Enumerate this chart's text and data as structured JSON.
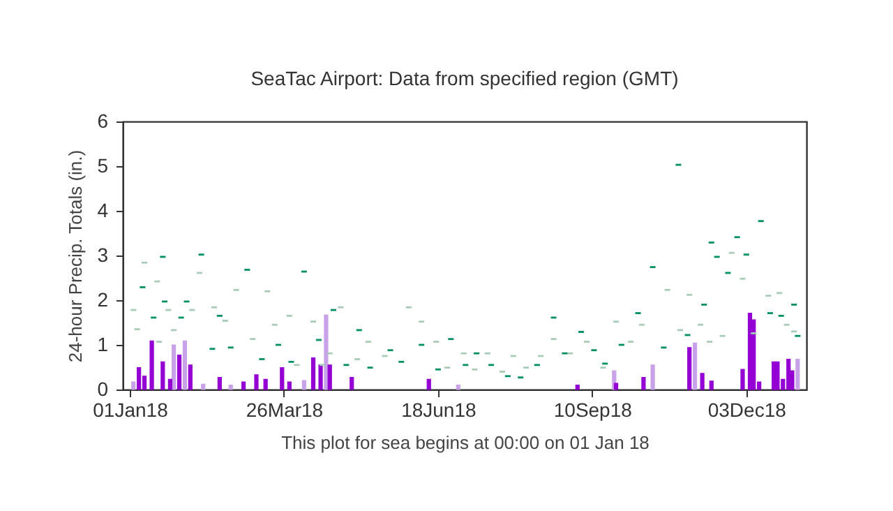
{
  "chart_data": {
    "type": "bar",
    "title": "SeaTac Airport:  Data from specified region (GMT)",
    "xlabel": "This plot for sea begins at 00:00 on 01 Jan 18",
    "ylabel": "24-hour Precip. Totals (in.)",
    "xlim": [
      "2018-01-01",
      "2019-01-01"
    ],
    "xticks": [
      {
        "value": "2018-01-01",
        "label": "01Jan18"
      },
      {
        "value": "2018-03-26",
        "label": "26Mar18"
      },
      {
        "value": "2018-06-18",
        "label": "18Jun18"
      },
      {
        "value": "2018-09-10",
        "label": "10Sep18"
      },
      {
        "value": "2018-12-03",
        "label": "03Dec18"
      }
    ],
    "ylim": [
      0,
      6
    ],
    "yticks": [
      0,
      1,
      2,
      3,
      4,
      5,
      6
    ],
    "series": [
      {
        "color": "#c8a2e8",
        "x": [
          "2018-01-03",
          "2018-01-25",
          "2018-01-31",
          "2018-02-10",
          "2018-02-25",
          "2018-04-06",
          "2018-04-18",
          "2018-06-29",
          "2018-09-22",
          "2018-10-13",
          "2018-11-05",
          "2018-12-31"
        ],
        "values": [
          0.17,
          1.0,
          1.09,
          0.12,
          0.1,
          0.2,
          1.67,
          0.1,
          0.42,
          0.55,
          1.04,
          0.68
        ]
      },
      {
        "color": "#9400d3",
        "x": [
          "2018-01-06",
          "2018-01-09",
          "2018-01-13",
          "2018-01-19",
          "2018-01-23",
          "2018-01-28",
          "2018-02-03",
          "2018-02-19",
          "2018-03-04",
          "2018-03-11",
          "2018-03-16",
          "2018-03-25",
          "2018-03-29",
          "2018-04-11",
          "2018-04-15",
          "2018-04-20",
          "2018-05-02",
          "2018-06-13",
          "2018-09-02",
          "2018-09-23",
          "2018-10-08",
          "2018-11-02",
          "2018-11-09",
          "2018-11-14",
          "2018-12-01",
          "2018-12-05",
          "2018-12-07",
          "2018-12-10",
          "2018-12-18",
          "2018-12-20",
          "2018-12-23",
          "2018-12-26",
          "2018-12-28"
        ],
        "values": [
          0.49,
          0.3,
          1.09,
          0.62,
          0.23,
          0.77,
          0.55,
          0.27,
          0.17,
          0.33,
          0.23,
          0.49,
          0.17,
          0.71,
          0.55,
          0.55,
          0.27,
          0.23,
          0.1,
          0.14,
          0.27,
          0.94,
          0.36,
          0.19,
          0.45,
          1.71,
          1.56,
          0.17,
          0.62,
          0.62,
          0.23,
          0.68,
          0.42
        ]
      },
      {
        "type": "scatter",
        "color": "#a8ccb8",
        "x": [
          "2018-01-03",
          "2018-01-05",
          "2018-01-09",
          "2018-01-16",
          "2018-01-17",
          "2018-01-22",
          "2018-01-25",
          "2018-02-04",
          "2018-02-08",
          "2018-02-16",
          "2018-02-22",
          "2018-02-28",
          "2018-03-09",
          "2018-03-17",
          "2018-03-21",
          "2018-03-29",
          "2018-04-02",
          "2018-04-11",
          "2018-04-16",
          "2018-04-20",
          "2018-04-26",
          "2018-05-05",
          "2018-05-11",
          "2018-05-20",
          "2018-06-02",
          "2018-06-09",
          "2018-06-17",
          "2018-06-23",
          "2018-07-02",
          "2018-07-08",
          "2018-07-15",
          "2018-07-23",
          "2018-07-29",
          "2018-08-05",
          "2018-08-13",
          "2018-08-20",
          "2018-08-29",
          "2018-09-07",
          "2018-09-16",
          "2018-09-23",
          "2018-10-01",
          "2018-10-07",
          "2018-10-21",
          "2018-10-28",
          "2018-11-02",
          "2018-11-08",
          "2018-11-13",
          "2018-11-20",
          "2018-11-25",
          "2018-12-01",
          "2018-12-07",
          "2018-12-15",
          "2018-12-21",
          "2018-12-25",
          "2018-12-29"
        ],
        "values": [
          1.78,
          1.35,
          2.84,
          2.42,
          1.07,
          1.78,
          1.33,
          1.78,
          2.61,
          1.84,
          1.54,
          2.23,
          1.13,
          2.2,
          1.45,
          1.65,
          0.55,
          1.52,
          0.55,
          0.81,
          1.84,
          0.68,
          1.07,
          0.75,
          1.84,
          1.52,
          1.07,
          0.49,
          0.81,
          0.45,
          0.81,
          0.4,
          0.75,
          0.49,
          0.75,
          1.13,
          0.81,
          1.07,
          0.49,
          1.52,
          1.07,
          1.45,
          2.23,
          1.33,
          2.12,
          1.45,
          1.07,
          1.2,
          3.06,
          2.48,
          1.26,
          2.1,
          2.16,
          1.45,
          1.3
        ]
      },
      {
        "type": "scatter",
        "color": "#008f5f",
        "x": [
          "2018-01-08",
          "2018-01-14",
          "2018-01-19",
          "2018-01-20",
          "2018-01-29",
          "2018-02-01",
          "2018-02-09",
          "2018-02-15",
          "2018-02-19",
          "2018-02-25",
          "2018-03-06",
          "2018-03-14",
          "2018-03-23",
          "2018-03-30",
          "2018-04-06",
          "2018-04-14",
          "2018-04-22",
          "2018-04-29",
          "2018-05-06",
          "2018-05-12",
          "2018-05-23",
          "2018-05-29",
          "2018-06-09",
          "2018-06-18",
          "2018-06-25",
          "2018-07-03",
          "2018-07-09",
          "2018-07-17",
          "2018-07-26",
          "2018-08-02",
          "2018-08-11",
          "2018-08-20",
          "2018-08-26",
          "2018-09-04",
          "2018-09-11",
          "2018-09-17",
          "2018-09-26",
          "2018-10-05",
          "2018-10-13",
          "2018-10-19",
          "2018-10-27",
          "2018-11-01",
          "2018-11-10",
          "2018-11-14",
          "2018-11-17",
          "2018-11-23",
          "2018-11-28",
          "2018-12-03",
          "2018-12-11",
          "2018-12-16",
          "2018-12-22",
          "2018-12-29",
          "2018-12-31"
        ],
        "values": [
          2.29,
          1.61,
          2.97,
          1.97,
          1.61,
          1.97,
          3.02,
          0.91,
          1.65,
          0.94,
          2.68,
          0.68,
          1.0,
          0.62,
          2.64,
          1.11,
          1.78,
          0.55,
          1.33,
          0.49,
          0.88,
          0.62,
          1.0,
          0.45,
          1.13,
          0.55,
          0.81,
          0.55,
          0.3,
          0.27,
          0.55,
          1.61,
          0.81,
          1.29,
          0.88,
          0.58,
          1.0,
          1.71,
          2.74,
          0.94,
          5.03,
          1.22,
          1.9,
          3.29,
          2.97,
          2.61,
          3.41,
          3.02,
          3.77,
          1.71,
          1.65,
          1.9,
          1.2
        ]
      }
    ]
  }
}
